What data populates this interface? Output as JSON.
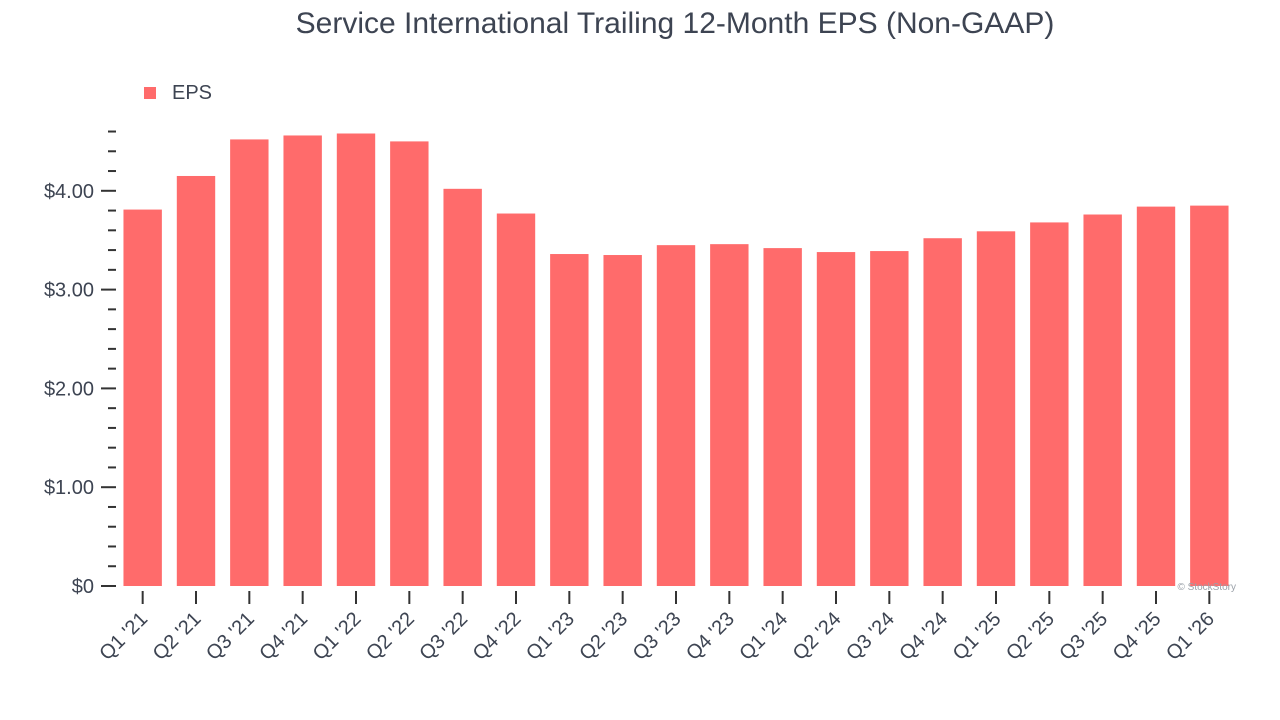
{
  "chart_data": {
    "type": "bar",
    "title": "Service International Trailing 12-Month EPS (Non-GAAP)",
    "xlabel": "",
    "ylabel": "",
    "categories": [
      "Q1 '21",
      "Q2 '21",
      "Q3 '21",
      "Q4 '21",
      "Q1 '22",
      "Q2 '22",
      "Q3 '22",
      "Q4 '22",
      "Q1 '23",
      "Q2 '23",
      "Q3 '23",
      "Q4 '23",
      "Q1 '24",
      "Q2 '24",
      "Q3 '24",
      "Q4 '24",
      "Q1 '25",
      "Q2 '25",
      "Q3 '25",
      "Q4 '25",
      "Q1 '26"
    ],
    "series": [
      {
        "name": "EPS",
        "color": "#ff6b6b",
        "values": [
          3.81,
          4.15,
          4.52,
          4.56,
          4.58,
          4.5,
          4.02,
          3.77,
          3.36,
          3.35,
          3.45,
          3.46,
          3.42,
          3.38,
          3.39,
          3.52,
          3.59,
          3.68,
          3.76,
          3.84,
          3.85
        ]
      }
    ],
    "ylim": [
      0,
      4.6
    ],
    "y_ticks": [
      0,
      1,
      2,
      3,
      4
    ],
    "y_tick_labels": [
      "$0",
      "$1.00",
      "$2.00",
      "$3.00",
      "$4.00"
    ],
    "y_minor_step": 0.2,
    "grid": false,
    "legend": {
      "placement": "top-left"
    }
  },
  "watermark": "© StockStory",
  "colors": {
    "text": "#3d4452",
    "bar": "#ff6b6b",
    "axis": "#333333",
    "watermark": "#9aa0a8"
  }
}
